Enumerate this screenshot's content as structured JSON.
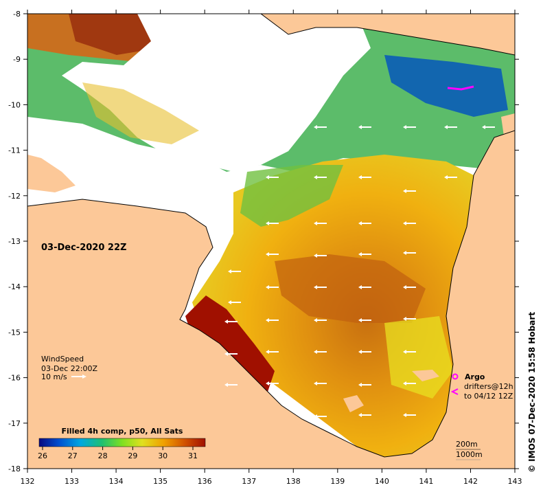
{
  "date_label": "03-Dec-2020 22Z",
  "wind_legend": {
    "title": "WindSpeed",
    "time": "03-Dec 22:00Z",
    "scale": "10 m/s"
  },
  "colorbar": {
    "title": "Filled 4h comp, p50, All Sats",
    "ticks": [
      "26",
      "27",
      "28",
      "29",
      "30",
      "31"
    ],
    "colors": [
      "#0a0a80",
      "#0060e0",
      "#00b0e0",
      "#20c070",
      "#80e020",
      "#e0e020",
      "#f0a000",
      "#d05000",
      "#a01000"
    ]
  },
  "drifter_legend": {
    "argo": "Argo",
    "drifters_line1": "drifters@12h",
    "drifters_line2": "to 04/12 12Z",
    "argo_color": "#ff00ff"
  },
  "depth_legend": {
    "line1": "200m",
    "line2": "1000m"
  },
  "credit": "© IMOS 07-Dec-2020 15:58 Hobart",
  "axes": {
    "x_ticks": [
      "132",
      "133",
      "134",
      "135",
      "136",
      "137",
      "138",
      "139",
      "140",
      "141",
      "142",
      "143"
    ],
    "y_ticks": [
      "-8",
      "-9",
      "-10",
      "-11",
      "-12",
      "-13",
      "-14",
      "-15",
      "-16",
      "-17",
      "-18"
    ]
  },
  "colors": {
    "land": "#fcc898",
    "cloud": "#ffffff",
    "warm": "#c05000",
    "hot": "#a01000",
    "mid": "#e8a000",
    "yellow": "#e0e020",
    "green": "#40b040"
  }
}
